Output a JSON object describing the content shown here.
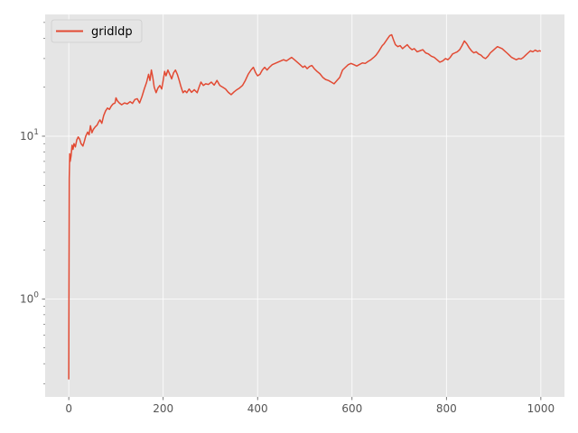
{
  "chart_data": {
    "type": "line",
    "title": "",
    "xlabel": "",
    "ylabel": "",
    "x_scale": "linear",
    "y_scale": "log",
    "xlim": [
      -50,
      1050
    ],
    "ylim": [
      0.25,
      56
    ],
    "grid": true,
    "legend_position": "top-left",
    "x_ticks": [
      {
        "value": 0,
        "label": "0"
      },
      {
        "value": 200,
        "label": "200"
      },
      {
        "value": 400,
        "label": "400"
      },
      {
        "value": 600,
        "label": "600"
      },
      {
        "value": 800,
        "label": "800"
      },
      {
        "value": 1000,
        "label": "1000"
      }
    ],
    "y_ticks": [
      {
        "value": 1,
        "base": "10",
        "exp": "0"
      },
      {
        "value": 10,
        "base": "10",
        "exp": "1"
      }
    ],
    "colors": {
      "background": "#e5e5e5",
      "grid": "#ffffff",
      "series": "#e24a33"
    },
    "series": [
      {
        "name": "gridldp",
        "points": [
          [
            0,
            0.32
          ],
          [
            1,
            5.5
          ],
          [
            2,
            7.8
          ],
          [
            3,
            7.0
          ],
          [
            5,
            7.6
          ],
          [
            7,
            8.8
          ],
          [
            9,
            8.3
          ],
          [
            11,
            9.0
          ],
          [
            14,
            8.6
          ],
          [
            17,
            9.5
          ],
          [
            20,
            9.9
          ],
          [
            23,
            9.6
          ],
          [
            26,
            9.0
          ],
          [
            30,
            8.7
          ],
          [
            33,
            9.3
          ],
          [
            36,
            10.0
          ],
          [
            40,
            10.6
          ],
          [
            43,
            10.2
          ],
          [
            46,
            11.6
          ],
          [
            49,
            10.5
          ],
          [
            52,
            11.0
          ],
          [
            56,
            11.4
          ],
          [
            60,
            11.7
          ],
          [
            63,
            12.2
          ],
          [
            66,
            12.6
          ],
          [
            70,
            12.0
          ],
          [
            74,
            13.4
          ],
          [
            78,
            14.3
          ],
          [
            82,
            14.9
          ],
          [
            86,
            14.6
          ],
          [
            90,
            15.3
          ],
          [
            94,
            15.8
          ],
          [
            98,
            16.0
          ],
          [
            100,
            17.2
          ],
          [
            103,
            16.5
          ],
          [
            107,
            16.0
          ],
          [
            112,
            15.6
          ],
          [
            118,
            16.0
          ],
          [
            124,
            15.8
          ],
          [
            130,
            16.3
          ],
          [
            135,
            15.9
          ],
          [
            140,
            16.8
          ],
          [
            145,
            17.0
          ],
          [
            150,
            16.0
          ],
          [
            155,
            17.5
          ],
          [
            160,
            19.5
          ],
          [
            165,
            21.5
          ],
          [
            169,
            24.0
          ],
          [
            172,
            22.0
          ],
          [
            175,
            25.5
          ],
          [
            178,
            23.0
          ],
          [
            181,
            20.0
          ],
          [
            185,
            18.5
          ],
          [
            189,
            19.8
          ],
          [
            193,
            20.5
          ],
          [
            197,
            19.5
          ],
          [
            200,
            22.0
          ],
          [
            203,
            25.0
          ],
          [
            206,
            23.5
          ],
          [
            210,
            25.5
          ],
          [
            214,
            24.0
          ],
          [
            218,
            22.5
          ],
          [
            222,
            24.5
          ],
          [
            226,
            25.5
          ],
          [
            230,
            24.0
          ],
          [
            234,
            22.0
          ],
          [
            238,
            20.0
          ],
          [
            242,
            18.5
          ],
          [
            246,
            19.0
          ],
          [
            250,
            18.5
          ],
          [
            255,
            19.5
          ],
          [
            260,
            18.6
          ],
          [
            266,
            19.3
          ],
          [
            272,
            18.5
          ],
          [
            276,
            20.0
          ],
          [
            280,
            21.5
          ],
          [
            285,
            20.5
          ],
          [
            290,
            21.0
          ],
          [
            296,
            20.8
          ],
          [
            302,
            21.5
          ],
          [
            308,
            20.6
          ],
          [
            314,
            22.0
          ],
          [
            320,
            20.5
          ],
          [
            326,
            20.0
          ],
          [
            332,
            19.5
          ],
          [
            338,
            18.6
          ],
          [
            344,
            18.0
          ],
          [
            350,
            18.7
          ],
          [
            356,
            19.3
          ],
          [
            362,
            19.8
          ],
          [
            368,
            20.5
          ],
          [
            374,
            22.0
          ],
          [
            380,
            24.0
          ],
          [
            386,
            25.5
          ],
          [
            391,
            26.5
          ],
          [
            396,
            24.5
          ],
          [
            400,
            23.5
          ],
          [
            405,
            24.0
          ],
          [
            410,
            25.5
          ],
          [
            415,
            26.5
          ],
          [
            420,
            25.5
          ],
          [
            425,
            26.5
          ],
          [
            431,
            27.5
          ],
          [
            437,
            28.0
          ],
          [
            443,
            28.5
          ],
          [
            449,
            29.0
          ],
          [
            455,
            29.5
          ],
          [
            461,
            29.0
          ],
          [
            467,
            29.8
          ],
          [
            472,
            30.5
          ],
          [
            478,
            29.5
          ],
          [
            484,
            28.5
          ],
          [
            490,
            27.5
          ],
          [
            496,
            26.5
          ],
          [
            500,
            27.0
          ],
          [
            505,
            26.0
          ],
          [
            510,
            26.8
          ],
          [
            515,
            27.2
          ],
          [
            520,
            26.0
          ],
          [
            526,
            25.0
          ],
          [
            532,
            24.2
          ],
          [
            538,
            23.0
          ],
          [
            544,
            22.3
          ],
          [
            550,
            22.0
          ],
          [
            556,
            21.5
          ],
          [
            562,
            21.0
          ],
          [
            568,
            22.0
          ],
          [
            574,
            23.0
          ],
          [
            580,
            25.5
          ],
          [
            586,
            26.5
          ],
          [
            592,
            27.5
          ],
          [
            598,
            28.0
          ],
          [
            604,
            27.5
          ],
          [
            610,
            27.0
          ],
          [
            616,
            27.6
          ],
          [
            622,
            28.2
          ],
          [
            628,
            28.0
          ],
          [
            634,
            28.8
          ],
          [
            640,
            29.5
          ],
          [
            646,
            30.5
          ],
          [
            651,
            31.5
          ],
          [
            656,
            33.0
          ],
          [
            660,
            34.5
          ],
          [
            664,
            36.0
          ],
          [
            668,
            37.0
          ],
          [
            672,
            38.5
          ],
          [
            676,
            40.0
          ],
          [
            680,
            41.5
          ],
          [
            684,
            42.0
          ],
          [
            688,
            39.0
          ],
          [
            692,
            36.5
          ],
          [
            697,
            35.5
          ],
          [
            702,
            36.0
          ],
          [
            707,
            34.5
          ],
          [
            712,
            35.5
          ],
          [
            717,
            36.5
          ],
          [
            722,
            35.0
          ],
          [
            727,
            34.0
          ],
          [
            732,
            34.5
          ],
          [
            738,
            33.0
          ],
          [
            744,
            33.5
          ],
          [
            750,
            34.0
          ],
          [
            756,
            32.5
          ],
          [
            762,
            32.0
          ],
          [
            768,
            31.0
          ],
          [
            774,
            30.5
          ],
          [
            780,
            29.5
          ],
          [
            786,
            28.5
          ],
          [
            792,
            29.0
          ],
          [
            798,
            30.0
          ],
          [
            803,
            29.5
          ],
          [
            808,
            30.5
          ],
          [
            813,
            32.0
          ],
          [
            818,
            32.5
          ],
          [
            823,
            33.0
          ],
          [
            828,
            34.0
          ],
          [
            833,
            36.0
          ],
          [
            838,
            38.5
          ],
          [
            843,
            37.0
          ],
          [
            848,
            35.0
          ],
          [
            853,
            33.5
          ],
          [
            858,
            32.5
          ],
          [
            863,
            33.0
          ],
          [
            868,
            32.0
          ],
          [
            873,
            31.5
          ],
          [
            878,
            30.5
          ],
          [
            883,
            30.0
          ],
          [
            888,
            31.0
          ],
          [
            893,
            32.5
          ],
          [
            898,
            33.5
          ],
          [
            903,
            34.5
          ],
          [
            908,
            35.5
          ],
          [
            913,
            35.0
          ],
          [
            918,
            34.5
          ],
          [
            923,
            33.5
          ],
          [
            928,
            32.5
          ],
          [
            933,
            31.5
          ],
          [
            938,
            30.5
          ],
          [
            943,
            30.0
          ],
          [
            948,
            29.5
          ],
          [
            953,
            30.0
          ],
          [
            958,
            29.8
          ],
          [
            963,
            30.5
          ],
          [
            968,
            31.5
          ],
          [
            973,
            32.5
          ],
          [
            978,
            33.5
          ],
          [
            983,
            33.0
          ],
          [
            988,
            33.8
          ],
          [
            993,
            33.2
          ],
          [
            997,
            33.5
          ],
          [
            1000,
            33.3
          ]
        ]
      }
    ]
  }
}
